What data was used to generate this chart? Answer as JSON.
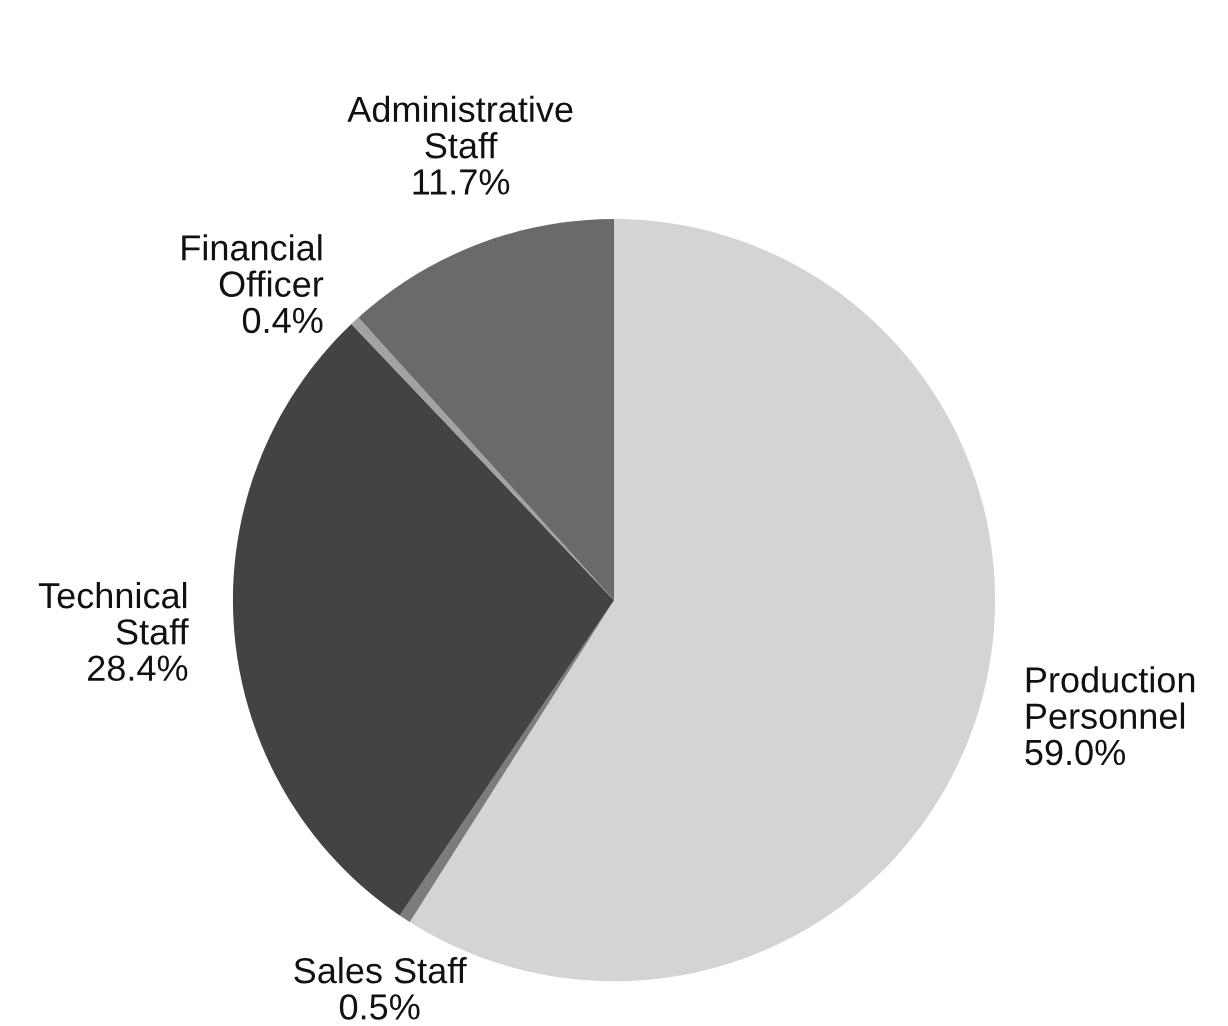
{
  "chart_data": {
    "type": "pie",
    "categories": [
      "Production\nPersonnel",
      "Sales Staff",
      "Technical\nStaff",
      "Financial\nOfficer",
      "Administrative\nStaff"
    ],
    "values": [
      59.0,
      0.5,
      28.4,
      0.4,
      11.7
    ],
    "value_labels": [
      "59.0%",
      "0.5%",
      "28.4%",
      "0.4%",
      "11.7%"
    ],
    "colors": [
      "#d4d4d4",
      "#7c7c7c",
      "#434343",
      "#a2a2a2",
      "#6a6a6a"
    ]
  }
}
